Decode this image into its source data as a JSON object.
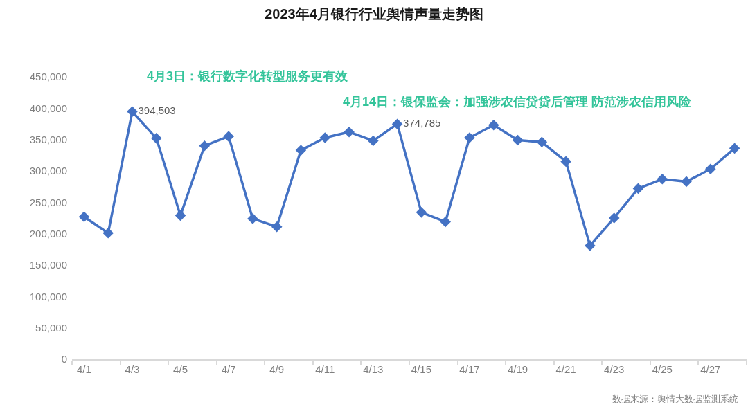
{
  "chart_data": {
    "type": "line",
    "title": "2023年4月银行行业舆情声量走势图",
    "categories": [
      "4/1",
      null,
      "4/3",
      null,
      "4/5",
      null,
      "4/7",
      null,
      "4/9",
      null,
      "4/11",
      null,
      "4/13",
      null,
      "4/15",
      null,
      "4/17",
      null,
      "4/19",
      null,
      "4/21",
      null,
      "4/23",
      null,
      "4/25",
      null,
      "4/27",
      null
    ],
    "values": [
      227000,
      201000,
      394503,
      352000,
      229000,
      340000,
      355000,
      224000,
      211000,
      333000,
      353000,
      362000,
      348000,
      374785,
      234000,
      219000,
      353000,
      373000,
      349000,
      346000,
      315000,
      181000,
      225000,
      272000,
      287000,
      283000,
      303000,
      336000
    ],
    "value_labels": [
      null,
      null,
      "394,503",
      null,
      null,
      null,
      null,
      null,
      null,
      null,
      null,
      null,
      null,
      "374,785",
      null,
      null,
      null,
      null,
      null,
      null,
      null,
      null,
      null,
      null,
      null,
      null,
      null,
      null
    ],
    "color": "#4472c4",
    "marker": "diamond",
    "line_style": "solid",
    "grid": false,
    "ylim": [
      0,
      450000
    ],
    "yticks": [
      {
        "value": 0,
        "label": "0"
      },
      {
        "value": 50000,
        "label": "50,000"
      },
      {
        "value": 100000,
        "label": "100,000"
      },
      {
        "value": 150000,
        "label": "150,000"
      },
      {
        "value": 200000,
        "label": "200,000"
      },
      {
        "value": 250000,
        "label": "250,000"
      },
      {
        "value": 300000,
        "label": "300,000"
      },
      {
        "value": 350000,
        "label": "350,000"
      },
      {
        "value": 400000,
        "label": "400,000"
      },
      {
        "value": 450000,
        "label": "450,000"
      }
    ],
    "annotations": [
      "4月3日：银行数字化转型服务更有效",
      "4月14日：银保监会：加强涉农信贷贷后管理 防范涉农信用风险",
      "数据来源：舆情大数据监测系统"
    ]
  }
}
